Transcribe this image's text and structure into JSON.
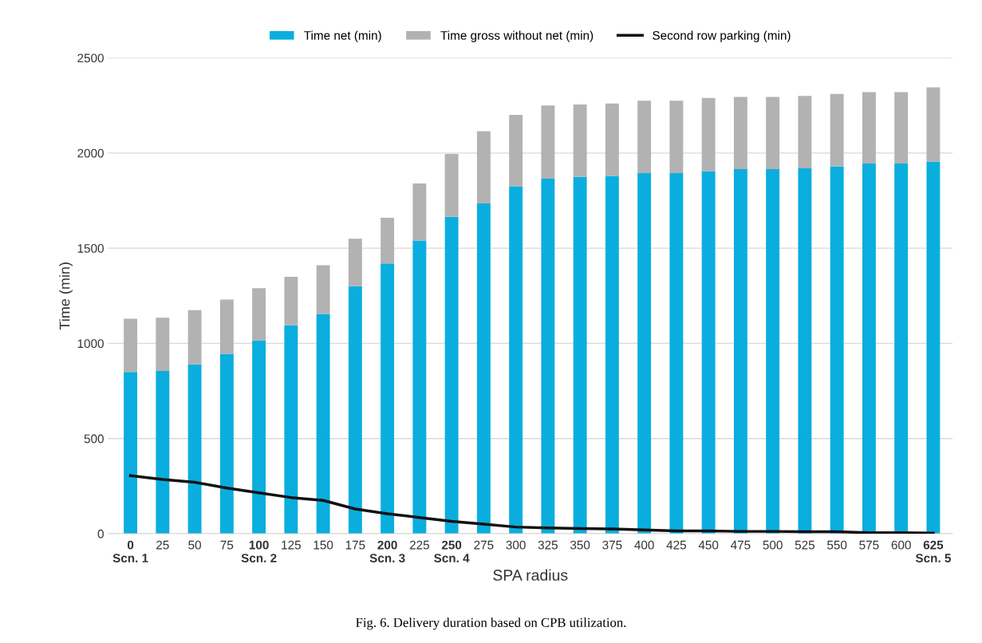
{
  "chart_data": {
    "type": "bar",
    "stacked": true,
    "xlabel": "SPA radius",
    "ylabel": "Time (min)",
    "categories": [
      "0\nScn. 1",
      "25",
      "50",
      "75",
      "100\nScn. 2",
      "125",
      "150",
      "175",
      "200\nScn. 3",
      "225",
      "250\nScn. 4",
      "275",
      "300",
      "325",
      "350",
      "375",
      "400",
      "425",
      "450",
      "475",
      "500",
      "525",
      "550",
      "575",
      "600",
      "625\nScn. 5"
    ],
    "series": [
      {
        "name": "Time net (min)",
        "color": "#0aaede",
        "values": [
          850,
          855,
          890,
          945,
          1015,
          1095,
          1155,
          1300,
          1420,
          1540,
          1665,
          1735,
          1825,
          1865,
          1875,
          1880,
          1895,
          1895,
          1905,
          1915,
          1915,
          1920,
          1930,
          1945,
          1945,
          1955
        ]
      },
      {
        "name": "Time gross without net (min)",
        "color": "#b2b2b2",
        "values": [
          280,
          280,
          285,
          285,
          275,
          255,
          255,
          250,
          240,
          300,
          330,
          380,
          375,
          385,
          380,
          380,
          380,
          380,
          385,
          380,
          380,
          380,
          380,
          375,
          375,
          390
        ]
      },
      {
        "name": "Second row parking (min)",
        "type": "line",
        "color": "#111111",
        "values": [
          305,
          285,
          270,
          240,
          215,
          190,
          175,
          130,
          105,
          85,
          65,
          50,
          35,
          30,
          27,
          25,
          20,
          15,
          15,
          12,
          12,
          10,
          10,
          5,
          5,
          3
        ]
      }
    ],
    "ylim": [
      0,
      2500
    ],
    "yticks": [
      0,
      500,
      1000,
      1500,
      2000,
      2500
    ],
    "grid": "y",
    "legend": "top",
    "marker": "none",
    "line_style": "solid",
    "annotations": [
      "Fig. 6. Delivery duration based on CPB utilization."
    ]
  }
}
